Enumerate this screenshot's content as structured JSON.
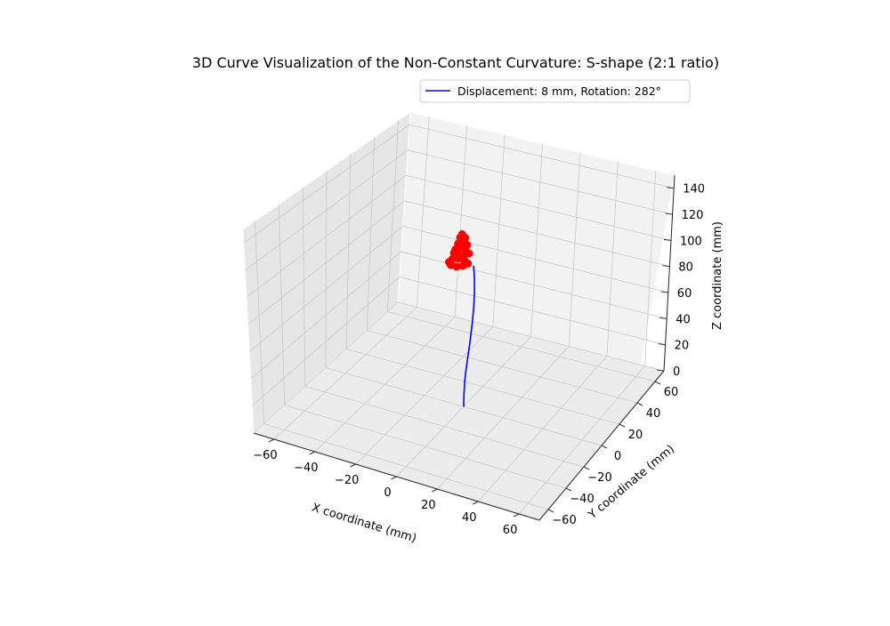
{
  "chart_data": {
    "type": "line3d",
    "title": "3D Curve Visualization of the Non-Constant Curvature: S-shape (2:1 ratio)",
    "xlabel": "X coordinate (mm)",
    "ylabel": "Y coordinate (mm)",
    "zlabel": "Z coordinate (mm)",
    "xlim": [
      -70,
      70
    ],
    "ylim": [
      -70,
      70
    ],
    "zlim": [
      0,
      150
    ],
    "xticks": [
      "−60",
      "−40",
      "−20",
      "0",
      "20",
      "40",
      "60"
    ],
    "yticks": [
      "−60",
      "−40",
      "−20",
      "0",
      "20",
      "40",
      "60"
    ],
    "zticks": [
      "0",
      "20",
      "40",
      "60",
      "80",
      "100",
      "120",
      "140"
    ],
    "grid": true,
    "legend_position": "top-right",
    "series": [
      {
        "name": "Displacement: 8 mm, Rotation: 282°",
        "type": "line",
        "color": "#0000ff",
        "points": [
          [
            0,
            0,
            0
          ],
          [
            0.3,
            -0.4,
            10
          ],
          [
            1.1,
            -1.3,
            20
          ],
          [
            2.3,
            -2.4,
            30
          ],
          [
            3.6,
            -3.4,
            40
          ],
          [
            4.8,
            -4.0,
            50
          ],
          [
            5.7,
            -4.1,
            60
          ],
          [
            6.2,
            -3.5,
            70
          ],
          [
            6.3,
            -2.5,
            80
          ],
          [
            6.0,
            -1.2,
            90
          ],
          [
            5.3,
            0.0,
            100
          ],
          [
            4.5,
            0.7,
            108
          ]
        ]
      },
      {
        "name": "",
        "type": "scatter",
        "color": "#ff0000",
        "points": [
          [
            2,
            0,
            109
          ],
          [
            -1,
            2,
            109
          ],
          [
            -4,
            2,
            109
          ],
          [
            -6,
            0,
            109
          ],
          [
            -6,
            -3,
            109
          ],
          [
            -4,
            -5,
            109
          ],
          [
            -1,
            -5,
            109
          ],
          [
            1,
            -3,
            109
          ],
          [
            2,
            1,
            116
          ],
          [
            -1,
            3,
            116
          ],
          [
            -4,
            3,
            116
          ],
          [
            -5,
            1,
            116
          ],
          [
            -4,
            -2,
            116
          ],
          [
            -1,
            -3,
            116
          ],
          [
            1,
            -1,
            116
          ],
          [
            1,
            1,
            122
          ],
          [
            -1,
            2,
            122
          ],
          [
            -3,
            2,
            122
          ],
          [
            -3,
            0,
            122
          ],
          [
            -2,
            -2,
            122
          ],
          [
            0,
            -1,
            122
          ],
          [
            0,
            1,
            127
          ],
          [
            -1,
            1,
            127
          ],
          [
            -2,
            0,
            127
          ],
          [
            -1,
            -1,
            127
          ],
          [
            -1,
            0,
            130
          ]
        ]
      }
    ]
  }
}
